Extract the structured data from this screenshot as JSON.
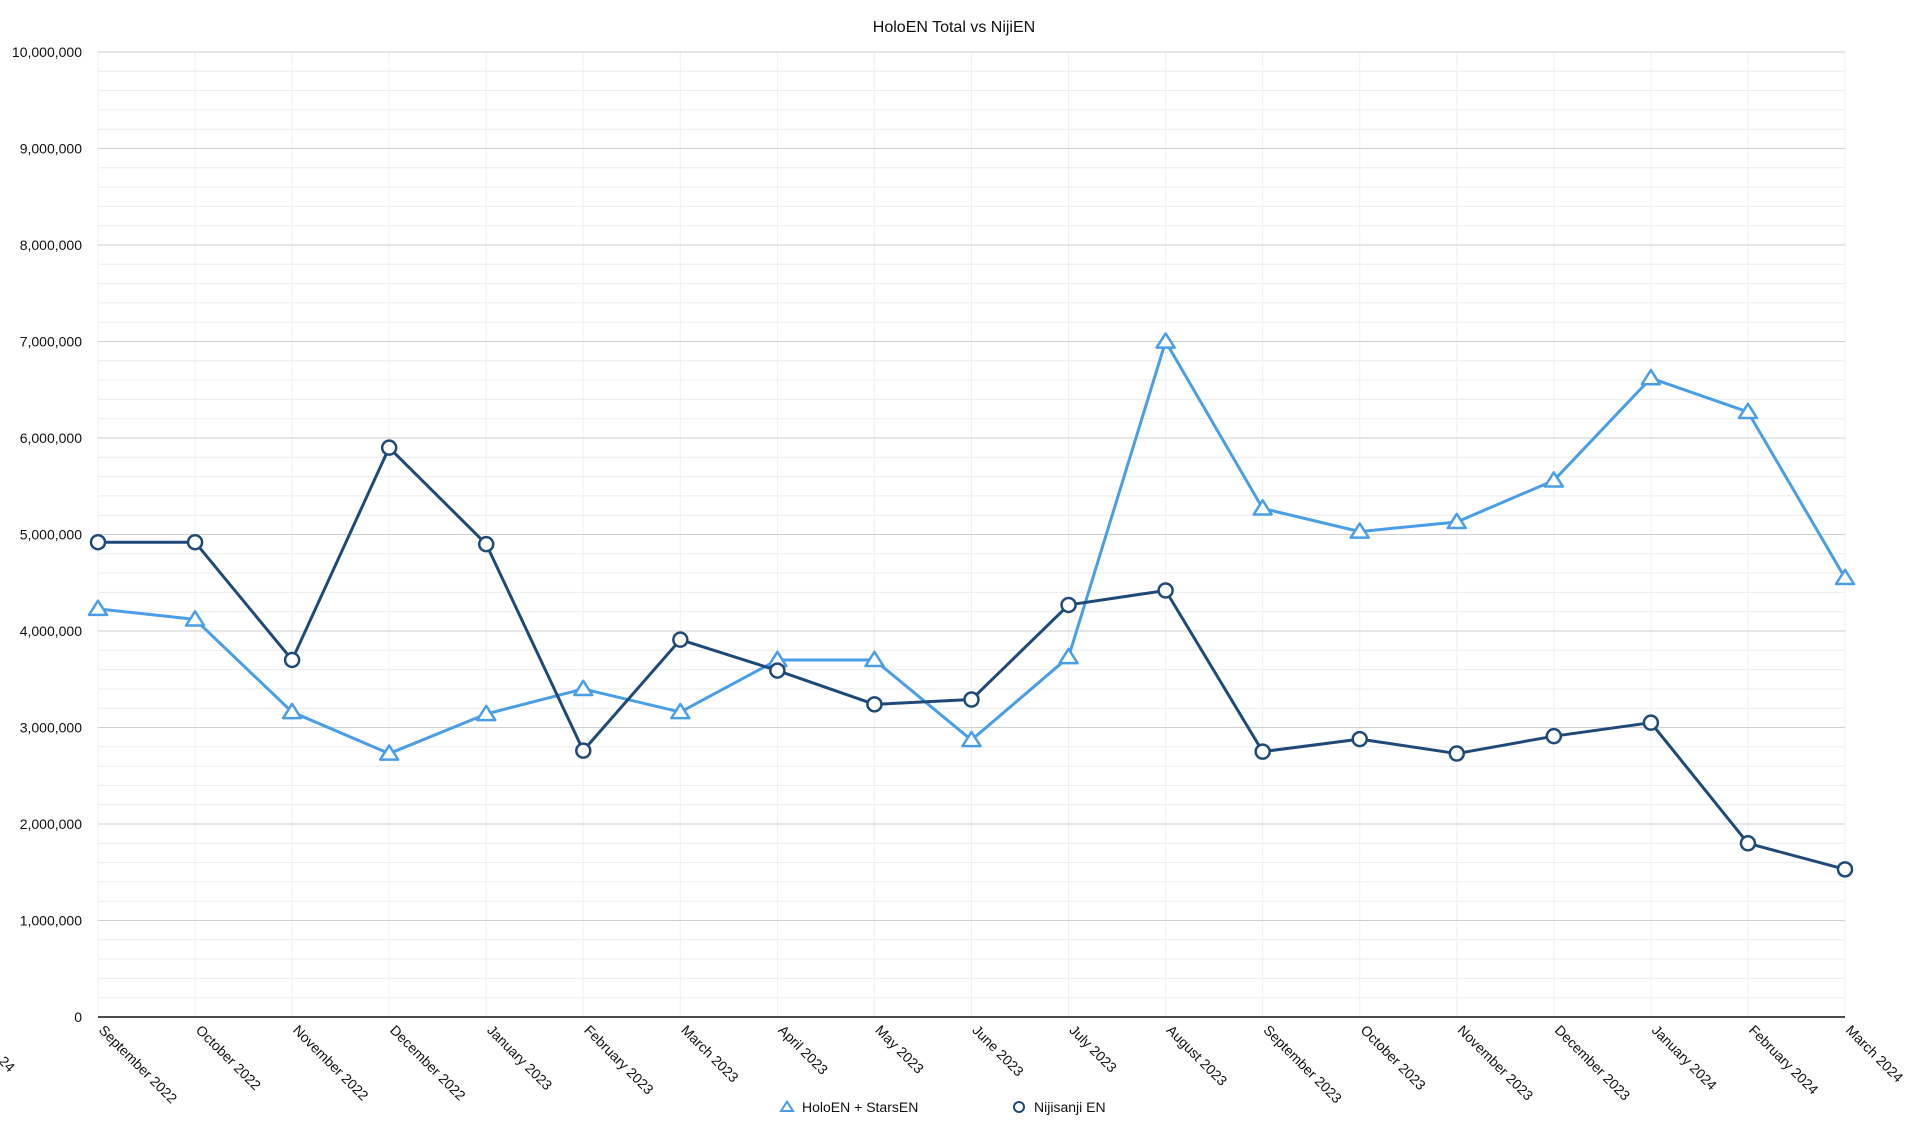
{
  "chart_data": {
    "type": "line",
    "title": "HoloEN Total vs NijiEN",
    "xlabel": "",
    "ylabel": "",
    "ylim": [
      0,
      10000000
    ],
    "yticks": [
      "0",
      "1,000,000",
      "2,000,000",
      "3,000,000",
      "4,000,000",
      "5,000,000",
      "6,000,000",
      "7,000,000",
      "8,000,000",
      "9,000,000",
      "10,000,000"
    ],
    "categories": [
      "September 2022",
      "October 2022",
      "November 2022",
      "December 2022",
      "January 2023",
      "February 2023",
      "March 2023",
      "April 2023",
      "May 2023",
      "June 2023",
      "July 2023",
      "August 2023",
      "September 2023",
      "October 2023",
      "November 2023",
      "December 2023",
      "January 2024",
      "February 2024",
      "March 2024"
    ],
    "clipped_tick_label": "24",
    "grid": true,
    "legend": "bottom",
    "series": [
      {
        "name": "HoloEN + StarsEN",
        "marker": "triangle",
        "color": "#4a9ee8",
        "values": [
          4230000,
          4120000,
          3160000,
          2730000,
          3140000,
          3400000,
          3160000,
          3700000,
          3700000,
          2870000,
          3730000,
          7000000,
          5270000,
          5030000,
          5130000,
          5560000,
          6620000,
          6270000,
          4550000
        ]
      },
      {
        "name": "Nijisanji EN",
        "marker": "circle",
        "color": "#1f4a78",
        "values": [
          4920000,
          4920000,
          3700000,
          5900000,
          4900000,
          2760000,
          3910000,
          3590000,
          3240000,
          3290000,
          4270000,
          4420000,
          2750000,
          2880000,
          2730000,
          2910000,
          3050000,
          1800000,
          1530000
        ]
      }
    ]
  }
}
